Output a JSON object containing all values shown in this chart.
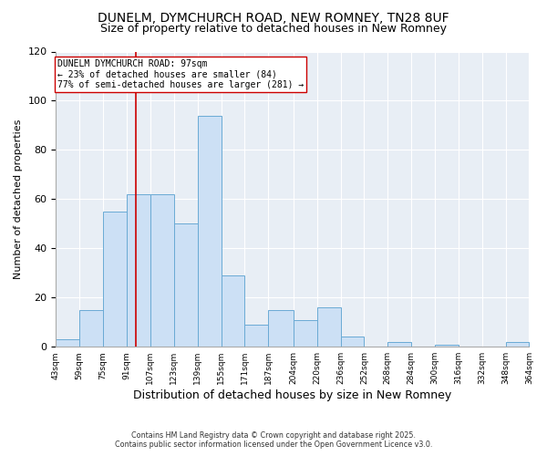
{
  "title": "DUNELM, DYMCHURCH ROAD, NEW ROMNEY, TN28 8UF",
  "subtitle": "Size of property relative to detached houses in New Romney",
  "xlabel": "Distribution of detached houses by size in New Romney",
  "ylabel": "Number of detached properties",
  "bins": [
    43,
    59,
    75,
    91,
    107,
    123,
    139,
    155,
    171,
    187,
    204,
    220,
    236,
    252,
    268,
    284,
    300,
    316,
    332,
    348,
    364
  ],
  "counts": [
    3,
    15,
    55,
    62,
    62,
    50,
    94,
    29,
    9,
    15,
    11,
    16,
    4,
    0,
    2,
    0,
    1,
    0,
    0,
    2
  ],
  "bar_color": "#cce0f5",
  "bar_edge_color": "#6aaad4",
  "vline_x": 97,
  "vline_color": "#cc0000",
  "annotation_title": "DUNELM DYMCHURCH ROAD: 97sqm",
  "annotation_line1": "← 23% of detached houses are smaller (84)",
  "annotation_line2": "77% of semi-detached houses are larger (281) →",
  "annotation_box_color": "#ffffff",
  "annotation_box_edge": "#cc0000",
  "ylim": [
    0,
    120
  ],
  "yticks": [
    0,
    20,
    40,
    60,
    80,
    100,
    120
  ],
  "background_color": "#ffffff",
  "plot_bg_color": "#e8eef5",
  "grid_color": "#ffffff",
  "footer1": "Contains HM Land Registry data © Crown copyright and database right 2025.",
  "footer2": "Contains public sector information licensed under the Open Government Licence v3.0.",
  "title_fontsize": 10,
  "subtitle_fontsize": 9,
  "tick_labels": [
    "43sqm",
    "59sqm",
    "75sqm",
    "91sqm",
    "107sqm",
    "123sqm",
    "139sqm",
    "155sqm",
    "171sqm",
    "187sqm",
    "204sqm",
    "220sqm",
    "236sqm",
    "252sqm",
    "268sqm",
    "284sqm",
    "300sqm",
    "316sqm",
    "332sqm",
    "348sqm",
    "364sqm"
  ]
}
